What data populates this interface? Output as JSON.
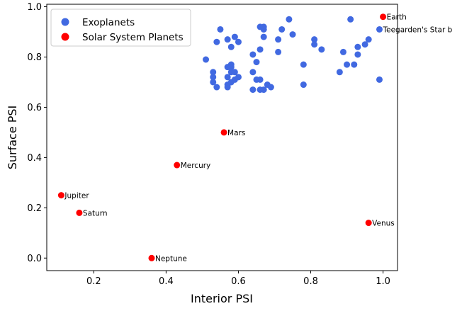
{
  "chart_data": {
    "type": "scatter",
    "xlabel": "Interior PSI",
    "ylabel": "Surface PSI",
    "xlim": [
      0.07,
      1.04
    ],
    "ylim": [
      -0.05,
      1.01
    ],
    "xticks": [
      "0.2",
      "0.4",
      "0.6",
      "0.8",
      "1.0"
    ],
    "yticks": [
      "0.0",
      "0.2",
      "0.4",
      "0.6",
      "0.8",
      "1.0"
    ],
    "grid": false,
    "legend_position": "top-left",
    "series": [
      {
        "name": "Exoplanets",
        "color": "#4169e1",
        "points": [
          [
            0.51,
            0.79
          ],
          [
            0.53,
            0.74
          ],
          [
            0.53,
            0.72
          ],
          [
            0.53,
            0.7
          ],
          [
            0.54,
            0.68
          ],
          [
            0.54,
            0.86
          ],
          [
            0.55,
            0.91
          ],
          [
            0.57,
            0.87
          ],
          [
            0.57,
            0.76
          ],
          [
            0.57,
            0.72
          ],
          [
            0.57,
            0.69
          ],
          [
            0.57,
            0.68
          ],
          [
            0.58,
            0.77
          ],
          [
            0.58,
            0.76
          ],
          [
            0.58,
            0.74
          ],
          [
            0.58,
            0.7
          ],
          [
            0.58,
            0.84
          ],
          [
            0.59,
            0.88
          ],
          [
            0.59,
            0.74
          ],
          [
            0.59,
            0.71
          ],
          [
            0.6,
            0.86
          ],
          [
            0.6,
            0.72
          ],
          [
            0.64,
            0.81
          ],
          [
            0.64,
            0.74
          ],
          [
            0.64,
            0.67
          ],
          [
            0.65,
            0.78
          ],
          [
            0.65,
            0.71
          ],
          [
            0.66,
            0.92
          ],
          [
            0.66,
            0.83
          ],
          [
            0.66,
            0.71
          ],
          [
            0.66,
            0.67
          ],
          [
            0.67,
            0.92
          ],
          [
            0.67,
            0.91
          ],
          [
            0.67,
            0.88
          ],
          [
            0.67,
            0.67
          ],
          [
            0.68,
            0.69
          ],
          [
            0.69,
            0.68
          ],
          [
            0.71,
            0.87
          ],
          [
            0.71,
            0.82
          ],
          [
            0.72,
            0.91
          ],
          [
            0.74,
            0.95
          ],
          [
            0.75,
            0.89
          ],
          [
            0.78,
            0.77
          ],
          [
            0.78,
            0.69
          ],
          [
            0.81,
            0.87
          ],
          [
            0.81,
            0.85
          ],
          [
            0.83,
            0.83
          ],
          [
            0.88,
            0.74
          ],
          [
            0.89,
            0.82
          ],
          [
            0.9,
            0.77
          ],
          [
            0.91,
            0.95
          ],
          [
            0.92,
            0.77
          ],
          [
            0.93,
            0.84
          ],
          [
            0.93,
            0.81
          ],
          [
            0.95,
            0.85
          ],
          [
            0.96,
            0.87
          ],
          [
            0.99,
            0.91
          ],
          [
            0.99,
            0.71
          ]
        ]
      },
      {
        "name": "Solar System Planets",
        "color": "#ff0000",
        "points": [
          [
            1.0,
            0.96
          ],
          [
            0.56,
            0.5
          ],
          [
            0.43,
            0.37
          ],
          [
            0.11,
            0.25
          ],
          [
            0.16,
            0.18
          ],
          [
            0.96,
            0.14
          ],
          [
            0.36,
            0.0
          ]
        ]
      }
    ],
    "annotations": [
      {
        "text": "Earth",
        "x": 1.0,
        "y": 0.96
      },
      {
        "text": "Teegarden's Star b",
        "x": 0.99,
        "y": 0.91
      },
      {
        "text": "Mars",
        "x": 0.56,
        "y": 0.5
      },
      {
        "text": "Mercury",
        "x": 0.43,
        "y": 0.37
      },
      {
        "text": "Jupiter",
        "x": 0.11,
        "y": 0.25
      },
      {
        "text": "Saturn",
        "x": 0.16,
        "y": 0.18
      },
      {
        "text": "Venus",
        "x": 0.96,
        "y": 0.14
      },
      {
        "text": "Neptune",
        "x": 0.36,
        "y": 0.0
      }
    ]
  }
}
